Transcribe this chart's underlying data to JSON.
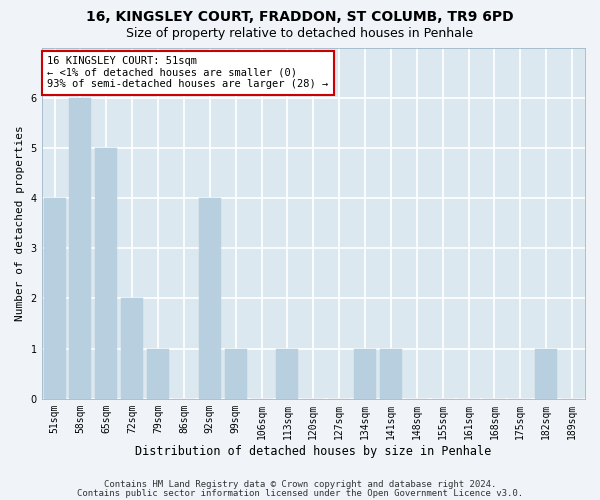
{
  "title1": "16, KINGSLEY COURT, FRADDON, ST COLUMB, TR9 6PD",
  "title2": "Size of property relative to detached houses in Penhale",
  "xlabel": "Distribution of detached houses by size in Penhale",
  "ylabel": "Number of detached properties",
  "categories": [
    "51sqm",
    "58sqm",
    "65sqm",
    "72sqm",
    "79sqm",
    "86sqm",
    "92sqm",
    "99sqm",
    "106sqm",
    "113sqm",
    "120sqm",
    "127sqm",
    "134sqm",
    "141sqm",
    "148sqm",
    "155sqm",
    "161sqm",
    "168sqm",
    "175sqm",
    "182sqm",
    "189sqm"
  ],
  "values": [
    4,
    6,
    5,
    2,
    1,
    0,
    4,
    1,
    0,
    1,
    0,
    0,
    1,
    1,
    0,
    0,
    0,
    0,
    0,
    1,
    0
  ],
  "bar_color": "#b8cfe0",
  "bar_edge_color": "#b8cfe0",
  "annotation_text": "16 KINGSLEY COURT: 51sqm\n← <1% of detached houses are smaller (0)\n93% of semi-detached houses are larger (28) →",
  "annotation_box_facecolor": "#ffffff",
  "annotation_box_edgecolor": "#cc0000",
  "ylim": [
    0,
    7
  ],
  "yticks": [
    0,
    1,
    2,
    3,
    4,
    5,
    6
  ],
  "fig_bg_color": "#f0f4f8",
  "plot_bg_color": "#dce8f0",
  "grid_color": "#ffffff",
  "footer1": "Contains HM Land Registry data © Crown copyright and database right 2024.",
  "footer2": "Contains public sector information licensed under the Open Government Licence v3.0.",
  "title1_fontsize": 10,
  "title2_fontsize": 9,
  "xlabel_fontsize": 8.5,
  "ylabel_fontsize": 8,
  "tick_fontsize": 7,
  "footer_fontsize": 6.5,
  "annotation_fontsize": 7.5
}
